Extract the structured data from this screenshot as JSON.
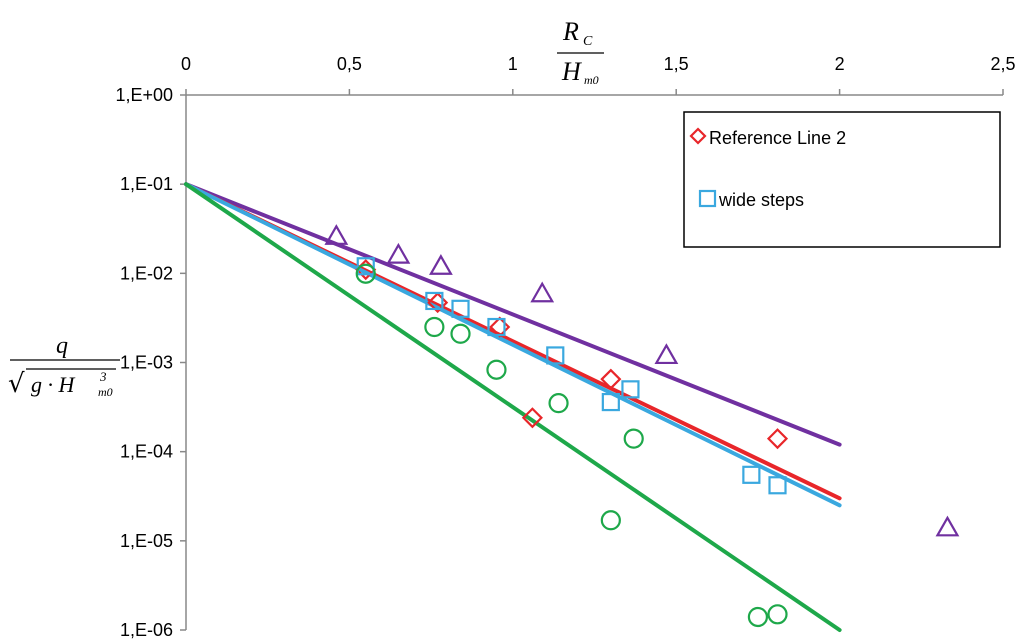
{
  "chart_data": {
    "type": "scatter",
    "title": "",
    "xlabel": {
      "numerator": "R",
      "numerator_sub": "C",
      "denominator": "H",
      "denominator_sub": "m0"
    },
    "ylabel": {
      "numerator": "q",
      "denominator_prefix": "√",
      "denominator": "g · H",
      "denominator_sup": "3",
      "denominator_sub": "m0"
    },
    "x_axis_position": "top",
    "xlim": [
      0,
      2.5
    ],
    "ylim": [
      1e-06,
      1
    ],
    "y_scale": "log",
    "grid": false,
    "x_ticks": [
      0,
      0.5,
      1,
      1.5,
      2,
      2.5
    ],
    "x_tick_labels": [
      "0",
      "0,5",
      "1",
      "1,5",
      "2",
      "2,5"
    ],
    "y_ticks": [
      1,
      0.1,
      0.01,
      0.001,
      0.0001,
      1e-05,
      1e-06
    ],
    "y_tick_labels": [
      "1,E+00",
      "1,E-01",
      "1,E-02",
      "1,E-03",
      "1,E-04",
      "1,E-05",
      "1,E-06"
    ],
    "legend": {
      "position": "top-right",
      "entries": [
        {
          "label": "Reference Line 2",
          "marker": "diamond",
          "color": "#e8262a"
        },
        {
          "label": "wide steps",
          "marker": "square",
          "color": "#3aa8df"
        }
      ]
    },
    "series": [
      {
        "name": "Reference Line 2",
        "marker": "diamond",
        "color": "#e8262a",
        "points": [
          {
            "x": 0.55,
            "y": 0.011
          },
          {
            "x": 0.77,
            "y": 0.0047
          },
          {
            "x": 0.96,
            "y": 0.0025
          },
          {
            "x": 1.06,
            "y": 0.00024
          },
          {
            "x": 1.3,
            "y": 0.00065
          },
          {
            "x": 1.81,
            "y": 0.00014
          }
        ]
      },
      {
        "name": "wide steps",
        "marker": "square",
        "color": "#3aa8df",
        "points": [
          {
            "x": 0.55,
            "y": 0.012
          },
          {
            "x": 0.76,
            "y": 0.0049
          },
          {
            "x": 0.84,
            "y": 0.004
          },
          {
            "x": 0.95,
            "y": 0.0025
          },
          {
            "x": 1.13,
            "y": 0.0012
          },
          {
            "x": 1.3,
            "y": 0.00036
          },
          {
            "x": 1.36,
            "y": 0.0005
          },
          {
            "x": 1.73,
            "y": 5.5e-05
          },
          {
            "x": 1.81,
            "y": 4.2e-05
          }
        ]
      },
      {
        "marker": "triangle",
        "color": "#7030a0",
        "points": [
          {
            "x": 0.46,
            "y": 0.026
          },
          {
            "x": 0.65,
            "y": 0.016
          },
          {
            "x": 0.78,
            "y": 0.012
          },
          {
            "x": 1.09,
            "y": 0.0059
          },
          {
            "x": 1.47,
            "y": 0.0012
          },
          {
            "x": 2.33,
            "y": 1.4e-05
          }
        ]
      },
      {
        "marker": "circle",
        "color": "#1ea84a",
        "points": [
          {
            "x": 0.55,
            "y": 0.0099
          },
          {
            "x": 0.76,
            "y": 0.0025
          },
          {
            "x": 0.84,
            "y": 0.0021
          },
          {
            "x": 0.95,
            "y": 0.00083
          },
          {
            "x": 1.14,
            "y": 0.00035
          },
          {
            "x": 1.3,
            "y": 1.7e-05
          },
          {
            "x": 1.37,
            "y": 0.00014
          },
          {
            "x": 1.75,
            "y": 1.4e-06
          },
          {
            "x": 1.81,
            "y": 1.5e-06
          }
        ]
      }
    ],
    "lines": [
      {
        "color": "#7030a0",
        "x": [
          0,
          2
        ],
        "y": [
          0.1,
          0.00012
        ]
      },
      {
        "color": "#e8262a",
        "x": [
          0,
          2
        ],
        "y": [
          0.1,
          3e-05
        ]
      },
      {
        "color": "#3aa8df",
        "x": [
          0,
          2
        ],
        "y": [
          0.1,
          2.5e-05
        ]
      },
      {
        "color": "#1ea84a",
        "x": [
          0,
          2
        ],
        "y": [
          0.1,
          1e-06
        ]
      }
    ]
  }
}
